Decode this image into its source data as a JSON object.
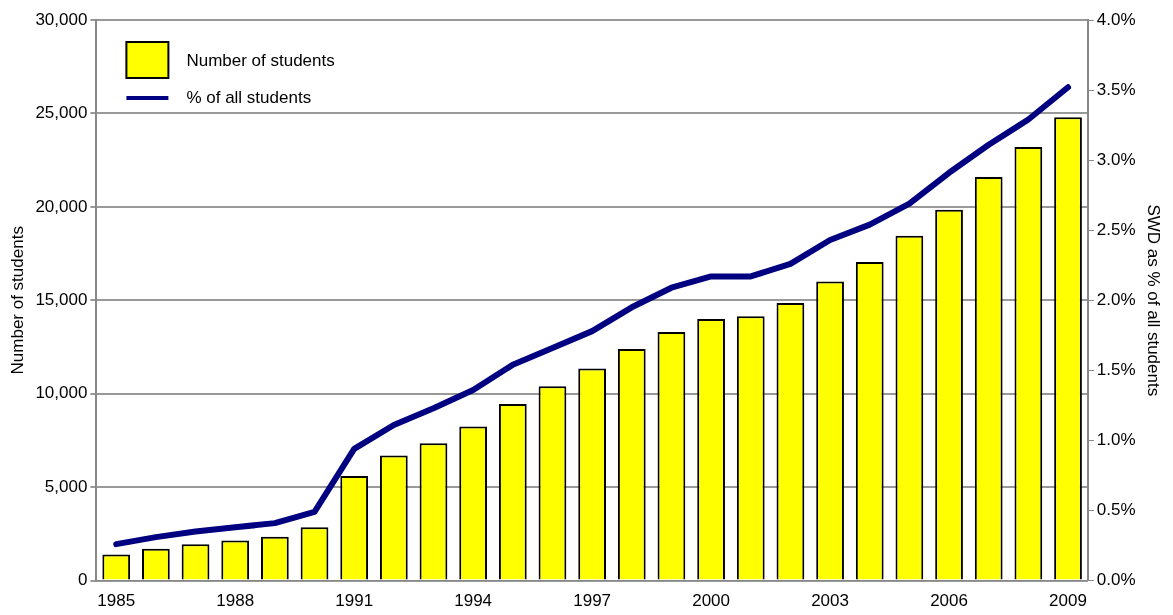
{
  "chart_data": {
    "type": "bar",
    "ylabel": "Number of students",
    "y2label": "SWD as % of all students",
    "categories": [
      "1985",
      null,
      null,
      "1988",
      null,
      null,
      "1991",
      null,
      null,
      "1994",
      null,
      null,
      "1997",
      null,
      null,
      "2000",
      null,
      null,
      "2003",
      null,
      null,
      "2006",
      null,
      null,
      "2009"
    ],
    "series": [
      {
        "name": "Number of students",
        "color": "#ffff00",
        "values": [
          1400,
          1700,
          1950,
          2150,
          2350,
          2850,
          5600,
          6700,
          7350,
          8250,
          9450,
          10400,
          11350,
          12400,
          13300,
          14000,
          14150,
          14850,
          16000,
          17050,
          18450,
          19850,
          21600,
          23200,
          24800
        ]
      },
      {
        "name": "% of all students",
        "type": "line",
        "axis": "y2",
        "color": "#000080",
        "values": [
          0.26,
          0.31,
          0.35,
          0.38,
          0.41,
          0.49,
          0.94,
          1.11,
          1.23,
          1.36,
          1.54,
          1.66,
          1.78,
          1.95,
          2.09,
          2.17,
          2.17,
          2.26,
          2.43,
          2.54,
          2.69,
          2.91,
          3.11,
          3.29,
          3.52
        ]
      }
    ],
    "ylim": [
      0,
      30000
    ],
    "yticks": [
      0,
      {
        "value": 5000,
        "label": "5,000"
      },
      {
        "value": 10000,
        "label": "10,000"
      },
      {
        "value": 15000,
        "label": "15,000"
      },
      {
        "value": 20000,
        "label": "20,000"
      },
      {
        "value": 25000,
        "label": "25,000"
      },
      {
        "value": 30000,
        "label": "30,000"
      }
    ],
    "y2lim": [
      0,
      4
    ],
    "y2ticks": [
      {
        "value": 0,
        "label": "0.0%"
      },
      {
        "value": 0.5,
        "label": "0.5%"
      },
      {
        "value": 1,
        "label": "1.0%"
      },
      {
        "value": 1.5,
        "label": "1.5%"
      },
      {
        "value": 2,
        "label": "2.0%"
      },
      {
        "value": 2.5,
        "label": "2.5%"
      },
      {
        "value": 3,
        "label": "3.0%"
      },
      {
        "value": 3.5,
        "label": "3.5%"
      },
      {
        "value": 4,
        "label": "4.0%"
      }
    ],
    "grid": "y",
    "legend": "top left",
    "marker": "none",
    "line_style": "solid"
  }
}
